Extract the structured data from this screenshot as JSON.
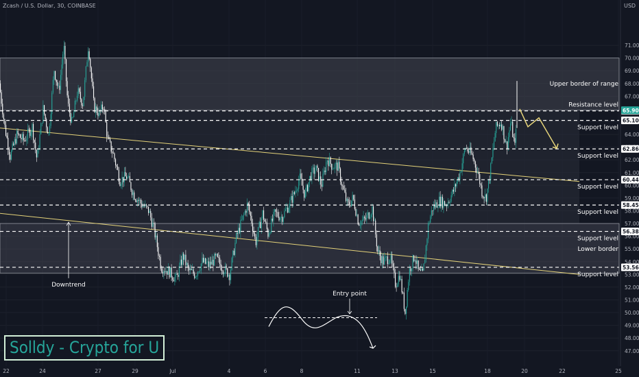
{
  "header": {
    "symbol_line": "Zcash / U.S. Dollar, 30, COINBASE",
    "currency": "USD"
  },
  "brand": "Solldy - Crypto for U",
  "colors": {
    "background": "#131722",
    "candle_up": "#26a69a",
    "candle_down": "#ffffff",
    "range_fill": "#434651",
    "trend_line": "#e6d47a",
    "forecast_arrow": "#e6d47a",
    "price_tag": "#26a69a",
    "upper_border_label": "#26a69a",
    "lower_border_label": "#2196f3"
  },
  "chart_data": {
    "type": "candlestick",
    "ylim": [
      46.4,
      71.3
    ],
    "y_ticks": [
      "47.00",
      "48.00",
      "49.00",
      "50.00",
      "51.00",
      "52.00",
      "53.00",
      "54.00",
      "55.00",
      "56.00",
      "57.00",
      "58.00",
      "59.00",
      "60.00",
      "61.00",
      "62.00",
      "63.00",
      "64.00",
      "65.00",
      "66.00",
      "67.00",
      "68.00",
      "69.00",
      "70.00",
      "71.00"
    ],
    "x_ticks": [
      "22",
      "24",
      "27",
      "29",
      "Jul",
      "4",
      "6",
      "8",
      "11",
      "13",
      "15",
      "18",
      "20",
      "22",
      "25"
    ],
    "price_path": [
      [
        0,
        68.0
      ],
      [
        8,
        64.6
      ],
      [
        16,
        62.3
      ],
      [
        26,
        64.0
      ],
      [
        36,
        63.5
      ],
      [
        48,
        64.6
      ],
      [
        55,
        62.0
      ],
      [
        64,
        66.0
      ],
      [
        72,
        64.0
      ],
      [
        80,
        69.1
      ],
      [
        87,
        67.3
      ],
      [
        94,
        71.0
      ],
      [
        100,
        66.4
      ],
      [
        106,
        64.8
      ],
      [
        114,
        67.4
      ],
      [
        122,
        66.4
      ],
      [
        130,
        71.1
      ],
      [
        138,
        66.2
      ],
      [
        146,
        65.6
      ],
      [
        152,
        66.3
      ],
      [
        158,
        63.6
      ],
      [
        166,
        62.5
      ],
      [
        176,
        60.4
      ],
      [
        186,
        60.7
      ],
      [
        196,
        59.3
      ],
      [
        208,
        58.5
      ],
      [
        218,
        58.0
      ],
      [
        226,
        56.5
      ],
      [
        236,
        53.6
      ],
      [
        248,
        53.2
      ],
      [
        258,
        52.6
      ],
      [
        268,
        54.5
      ],
      [
        276,
        53.3
      ],
      [
        286,
        53.0
      ],
      [
        296,
        54.0
      ],
      [
        306,
        53.7
      ],
      [
        316,
        54.3
      ],
      [
        326,
        53.5
      ],
      [
        336,
        53.0
      ],
      [
        346,
        56.0
      ],
      [
        354,
        57.2
      ],
      [
        362,
        58.5
      ],
      [
        368,
        57.2
      ],
      [
        374,
        55.5
      ],
      [
        384,
        57.8
      ],
      [
        392,
        56.2
      ],
      [
        402,
        57.8
      ],
      [
        412,
        57.5
      ],
      [
        420,
        58.2
      ],
      [
        430,
        59.3
      ],
      [
        438,
        60.6
      ],
      [
        446,
        59.2
      ],
      [
        454,
        60.8
      ],
      [
        462,
        61.3
      ],
      [
        470,
        60.0
      ],
      [
        478,
        62.1
      ],
      [
        486,
        61.5
      ],
      [
        494,
        61.5
      ],
      [
        500,
        60.0
      ],
      [
        508,
        58.4
      ],
      [
        516,
        59.0
      ],
      [
        524,
        57.1
      ],
      [
        534,
        57.3
      ],
      [
        544,
        58.2
      ],
      [
        552,
        54.8
      ],
      [
        560,
        54.0
      ],
      [
        570,
        54.4
      ],
      [
        578,
        52.2
      ],
      [
        584,
        53.0
      ],
      [
        592,
        50.0
      ],
      [
        598,
        53.3
      ],
      [
        606,
        54.5
      ],
      [
        612,
        53.1
      ],
      [
        618,
        53.0
      ],
      [
        626,
        57.0
      ],
      [
        632,
        58.2
      ],
      [
        642,
        58.8
      ],
      [
        652,
        58.5
      ],
      [
        662,
        59.5
      ],
      [
        672,
        61.0
      ],
      [
        680,
        63.0
      ],
      [
        690,
        62.3
      ],
      [
        698,
        61.0
      ],
      [
        704,
        59.5
      ],
      [
        710,
        59.0
      ],
      [
        716,
        61.0
      ],
      [
        724,
        64.5
      ],
      [
        732,
        65.0
      ],
      [
        740,
        63.0
      ],
      [
        746,
        65.0
      ],
      [
        752,
        63.0
      ],
      [
        755,
        66.3
      ]
    ],
    "levels": [
      {
        "label": "Resistance level",
        "price": 65.85,
        "tag": "65.85"
      },
      {
        "label": "Support level",
        "price": 65.1,
        "tag": "65.10"
      },
      {
        "label": "Support level",
        "price": 62.86,
        "tag": "62.86"
      },
      {
        "label": "Support level",
        "price": 60.44,
        "tag": "60.44"
      },
      {
        "label": "Support level",
        "price": 58.45,
        "tag": "58.45"
      },
      {
        "label": "Support level",
        "price": 56.38,
        "tag": "56.38"
      },
      {
        "label": "Support level",
        "price": 53.56,
        "tag": "53.56"
      }
    ],
    "last_price": {
      "price": 65.9,
      "tag": "65.90"
    },
    "range_labels": {
      "upper": "Upper border of range",
      "lower": "Lower border"
    },
    "annotations": {
      "downtrend": "Downtrend",
      "entry_point": "Entry point"
    }
  }
}
